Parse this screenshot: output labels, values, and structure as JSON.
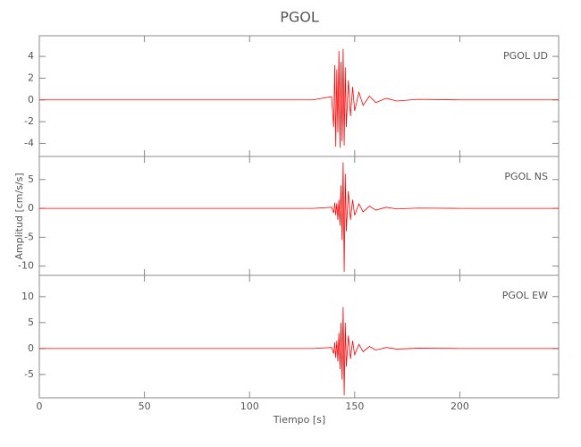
{
  "chart_data": {
    "type": "line",
    "title": "PGOL",
    "xlabel": "Tiempo [s]",
    "ylabel": "Amplitud [cm/s/s]",
    "color": "#ff0000",
    "xlim": [
      0,
      247
    ],
    "xticks": [
      0,
      50,
      100,
      150,
      200
    ],
    "x": [
      0,
      130,
      139,
      140,
      140.5,
      141,
      141.5,
      142,
      142.5,
      143,
      143.5,
      144,
      144.5,
      145,
      145.5,
      146,
      147,
      148,
      149,
      150,
      152,
      154,
      157,
      160,
      165,
      170,
      180,
      200,
      247
    ],
    "panels": [
      {
        "name": "PGOL   UD",
        "ylim": [
          -5.2,
          5.9
        ],
        "yticks": [
          -4,
          -2,
          0,
          2,
          4
        ],
        "values": [
          0,
          0,
          0.3,
          -2.5,
          3.2,
          -4.3,
          2.8,
          -3.0,
          4.5,
          -4.4,
          3.5,
          -3.8,
          4.7,
          -4.2,
          3.0,
          -2.5,
          1.8,
          -1.5,
          1.2,
          -1.0,
          0.7,
          -0.5,
          0.35,
          -0.25,
          0.15,
          -0.1,
          0.05,
          0,
          0
        ]
      },
      {
        "name": "PGOL   NS",
        "ylim": [
          -11.6,
          9
        ],
        "yticks": [
          -10,
          -5,
          0,
          5
        ],
        "values": [
          0,
          0,
          0.2,
          -0.8,
          1.0,
          -1.2,
          0.9,
          -2.0,
          1.5,
          -3.0,
          4.0,
          -5.5,
          8.0,
          -11.0,
          6.0,
          -4.0,
          3.0,
          -2.0,
          1.5,
          -1.2,
          0.8,
          -0.6,
          0.4,
          -0.3,
          0.2,
          -0.1,
          0.05,
          0,
          0
        ]
      },
      {
        "name": "PGOL   EW",
        "ylim": [
          -9.5,
          14.1
        ],
        "yticks": [
          -5,
          0,
          5,
          10
        ],
        "values": [
          0,
          0,
          0.2,
          -1.0,
          1.2,
          -1.8,
          1.5,
          -2.5,
          3.0,
          -4.0,
          5.0,
          -6.0,
          8.0,
          -9.0,
          5.0,
          -3.5,
          2.5,
          -2.0,
          1.5,
          -1.2,
          0.8,
          -0.6,
          0.4,
          -0.3,
          0.2,
          -0.1,
          0.05,
          0,
          0
        ]
      }
    ]
  }
}
